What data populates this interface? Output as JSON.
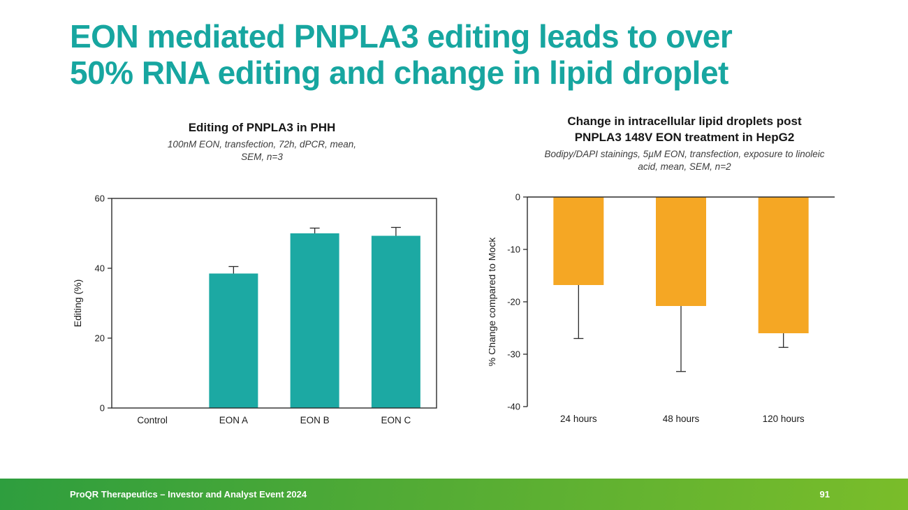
{
  "header": {
    "title_line1": "EON mediated PNPLA3 editing leads to over",
    "title_line2": "50% RNA editing and change in lipid droplet"
  },
  "colors": {
    "title_teal": "#17A6A0",
    "teal_bar": "#1CA9A3",
    "orange_bar": "#F5A724",
    "footer_gradient_start": "#2E9E3E",
    "footer_gradient_mid": "#52AB35",
    "footer_gradient_end": "#7ABD2A",
    "axis": "#2B2B2B"
  },
  "chart_data": [
    {
      "type": "bar",
      "title": "Editing of PNPLA3 in PHH",
      "subtitle": "100nM EON, transfection, 72h, dPCR, mean, SEM, n=3",
      "categories": [
        "Control",
        "EON A",
        "EON B",
        "EON C"
      ],
      "values": [
        0,
        38.5,
        50,
        49.3
      ],
      "errors": [
        0,
        2.0,
        1.5,
        2.4
      ],
      "xlabel": "",
      "ylabel": "Editing (%)",
      "ylim": [
        0,
        60
      ],
      "yticks": [
        0,
        20,
        40,
        60
      ],
      "grid": false,
      "legend": "none",
      "bar_color": "#1CA9A3"
    },
    {
      "type": "bar",
      "title": "Change in intracellular lipid droplets post PNPLA3 148V EON treatment in HepG2",
      "subtitle": "Bodipy/DAPI stainings, 5µM EON, transfection, exposure to linoleic acid, mean, SEM, n=2",
      "categories": [
        "24 hours",
        "48 hours",
        "120 hours"
      ],
      "values": [
        -16.8,
        -20.8,
        -26.0
      ],
      "errors": [
        10.2,
        12.5,
        2.7
      ],
      "xlabel": "",
      "ylabel": "% Change compared to Mock",
      "ylim": [
        -40,
        0
      ],
      "yticks": [
        0,
        -10,
        -20,
        -30,
        -40
      ],
      "grid": false,
      "legend": "none",
      "bar_color": "#F5A724"
    }
  ],
  "footer": {
    "left_text": "ProQR Therapeutics – Investor and Analyst Event 2024",
    "page_number": "91"
  }
}
